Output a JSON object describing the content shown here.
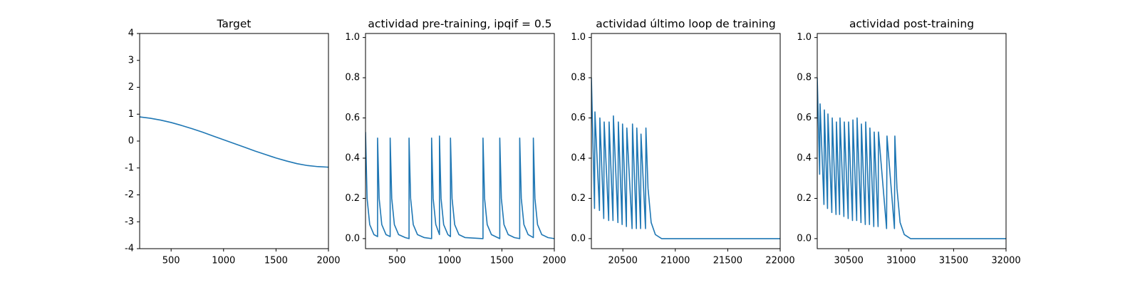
{
  "chart_data": [
    {
      "type": "line",
      "title": "Target",
      "x": [
        200,
        300,
        400,
        500,
        600,
        700,
        800,
        900,
        1000,
        1100,
        1200,
        1300,
        1400,
        1500,
        1600,
        1700,
        1800,
        1900,
        2000
      ],
      "series": [
        {
          "color": "#1f77b4",
          "values": [
            0.9,
            0.85,
            0.78,
            0.69,
            0.58,
            0.46,
            0.33,
            0.19,
            0.05,
            -0.09,
            -0.23,
            -0.37,
            -0.5,
            -0.63,
            -0.74,
            -0.84,
            -0.91,
            -0.95,
            -0.97
          ]
        }
      ],
      "xlim": [
        200,
        2000
      ],
      "xticks": [
        500,
        1000,
        1500,
        2000
      ],
      "ylim": [
        -4,
        4
      ],
      "yticks": [
        -4,
        -3,
        -2,
        -1,
        0,
        1,
        2,
        3,
        4
      ]
    },
    {
      "type": "line",
      "title": "actividad pre-training, ipqif = 0.5",
      "x": [
        200,
        215,
        240,
        280,
        315,
        315,
        330,
        355,
        395,
        435,
        435,
        450,
        475,
        515,
        580,
        615,
        615,
        630,
        655,
        695,
        760,
        830,
        830,
        845,
        870,
        905,
        905,
        920,
        945,
        985,
        1010,
        1010,
        1025,
        1050,
        1090,
        1150,
        1320,
        1320,
        1335,
        1360,
        1400,
        1460,
        1480,
        1480,
        1495,
        1520,
        1560,
        1620,
        1670,
        1670,
        1685,
        1710,
        1750,
        1800,
        1800,
        1815,
        1840,
        1880,
        1940,
        2000
      ],
      "series": [
        {
          "color": "#1f77b4",
          "values": [
            0.53,
            0.2,
            0.07,
            0.02,
            0.01,
            0.5,
            0.2,
            0.07,
            0.02,
            0.01,
            0.5,
            0.2,
            0.07,
            0.02,
            0.005,
            0.0,
            0.5,
            0.2,
            0.07,
            0.02,
            0.005,
            0.0,
            0.5,
            0.2,
            0.07,
            0.02,
            0.51,
            0.2,
            0.07,
            0.02,
            0.01,
            0.5,
            0.2,
            0.07,
            0.02,
            0.005,
            0.0,
            0.5,
            0.2,
            0.07,
            0.02,
            0.005,
            0.0,
            0.5,
            0.2,
            0.07,
            0.02,
            0.005,
            0.0,
            0.5,
            0.2,
            0.07,
            0.02,
            0.005,
            0.5,
            0.2,
            0.07,
            0.02,
            0.005,
            0.0
          ]
        }
      ],
      "xlim": [
        200,
        2000
      ],
      "xticks": [
        500,
        1000,
        1500,
        2000
      ],
      "ylim": [
        -0.05,
        1.02
      ],
      "yticks": [
        {
          "value": 0,
          "label": "0.0"
        },
        0.2,
        0.4,
        0.6,
        0.8,
        {
          "value": 1,
          "label": "1.0"
        }
      ]
    },
    {
      "type": "line",
      "title": "actividad último loop de training",
      "x": [
        20200,
        20230,
        20234,
        20277,
        20281,
        20318,
        20322,
        20365,
        20369,
        20406,
        20410,
        20453,
        20457,
        20493,
        20497,
        20534,
        20538,
        20588,
        20592,
        20629,
        20633,
        20669,
        20673,
        20716,
        20720,
        20740,
        20770,
        20810,
        20870,
        22000
      ],
      "series": [
        {
          "color": "#1f77b4",
          "values": [
            0.8,
            0.15,
            0.63,
            0.14,
            0.6,
            0.1,
            0.58,
            0.09,
            0.58,
            0.09,
            0.61,
            0.08,
            0.58,
            0.07,
            0.57,
            0.06,
            0.55,
            0.05,
            0.57,
            0.05,
            0.55,
            0.05,
            0.52,
            0.05,
            0.55,
            0.25,
            0.08,
            0.02,
            0.0,
            0.0
          ]
        }
      ],
      "xlim": [
        20200,
        22000
      ],
      "xticks": [
        20500,
        21000,
        21500,
        22000
      ],
      "ylim": [
        -0.05,
        1.02
      ],
      "yticks": [
        {
          "value": 0,
          "label": "0.0"
        },
        0.2,
        0.4,
        0.6,
        0.8,
        {
          "value": 1,
          "label": "1.0"
        }
      ]
    },
    {
      "type": "line",
      "title": "actividad post-training",
      "x": [
        30200,
        30223,
        30227,
        30264,
        30268,
        30298,
        30302,
        30339,
        30343,
        30379,
        30383,
        30413,
        30417,
        30454,
        30458,
        30495,
        30499,
        30536,
        30540,
        30576,
        30580,
        30617,
        30621,
        30658,
        30662,
        30698,
        30702,
        30739,
        30743,
        30780,
        30784,
        30861,
        30865,
        30936,
        30940,
        30960,
        30990,
        31030,
        31090,
        32000
      ],
      "series": [
        {
          "color": "#1f77b4",
          "values": [
            0.8,
            0.32,
            0.67,
            0.17,
            0.64,
            0.15,
            0.62,
            0.13,
            0.6,
            0.12,
            0.58,
            0.12,
            0.6,
            0.11,
            0.58,
            0.1,
            0.58,
            0.09,
            0.59,
            0.09,
            0.6,
            0.08,
            0.57,
            0.07,
            0.58,
            0.07,
            0.55,
            0.06,
            0.53,
            0.06,
            0.53,
            0.05,
            0.51,
            0.05,
            0.51,
            0.25,
            0.08,
            0.02,
            0.0,
            0.0
          ]
        }
      ],
      "xlim": [
        30200,
        32000
      ],
      "xticks": [
        30500,
        31000,
        31500,
        32000
      ],
      "ylim": [
        -0.05,
        1.02
      ],
      "yticks": [
        {
          "value": 0,
          "label": "0.0"
        },
        0.2,
        0.4,
        0.6,
        0.8,
        {
          "value": 1,
          "label": "1.0"
        }
      ]
    }
  ]
}
